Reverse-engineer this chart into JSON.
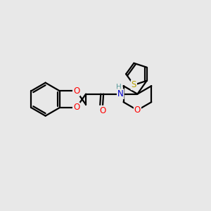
{
  "background_color": "#e8e8e8",
  "bond_color": "#000000",
  "bond_width": 1.6,
  "atom_colors": {
    "O": "#ff0000",
    "N": "#0000cd",
    "S": "#b8a000",
    "H": "#5a9a9a"
  },
  "font_size_atom": 8.5,
  "figsize": [
    3.0,
    3.0
  ],
  "dpi": 100
}
